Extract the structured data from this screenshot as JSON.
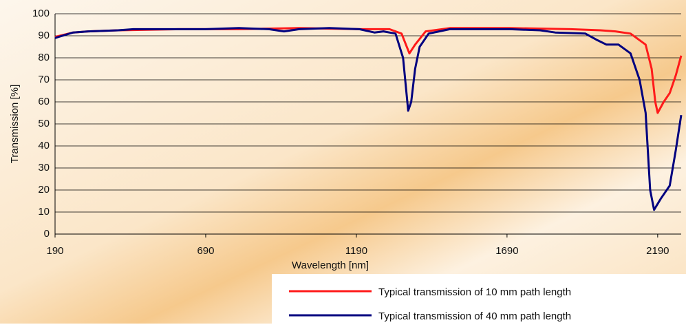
{
  "chart_data": {
    "type": "line",
    "x_label": "Wavelength [nm]",
    "y_label": "Transmission [%]",
    "xlim": [
      190,
      2268
    ],
    "ylim": [
      0,
      100
    ],
    "xticks": [
      190,
      690,
      1190,
      1690,
      2190
    ],
    "yticks": [
      0,
      10,
      20,
      30,
      40,
      50,
      60,
      70,
      80,
      90,
      100
    ],
    "grid": true,
    "legend": "bottom-right",
    "series": [
      {
        "name": "Typical transmission of 10 mm path length",
        "color": "#ff1a1a",
        "x": [
          190,
          250,
          300,
          400,
          600,
          800,
          1000,
          1200,
          1300,
          1340,
          1366,
          1385,
          1420,
          1500,
          1700,
          1900,
          2000,
          2050,
          2100,
          2150,
          2170,
          2182,
          2190,
          2210,
          2230,
          2250,
          2268
        ],
        "values": [
          89.5,
          91.5,
          92,
          92.5,
          93,
          93,
          93.5,
          93,
          93,
          91,
          82,
          86,
          92,
          93.5,
          93.5,
          93,
          92.5,
          92,
          91,
          86,
          75,
          60,
          55,
          60,
          64,
          72,
          81
        ]
      },
      {
        "name": "Typical transmission of 40 mm path length",
        "color": "#00007f",
        "x": [
          190,
          250,
          300,
          400,
          450,
          690,
          800,
          900,
          950,
          1000,
          1100,
          1200,
          1250,
          1280,
          1320,
          1345,
          1362,
          1372,
          1385,
          1400,
          1430,
          1500,
          1700,
          1800,
          1850,
          1950,
          1990,
          2020,
          2060,
          2100,
          2130,
          2150,
          2165,
          2178,
          2200,
          2230,
          2250,
          2268
        ],
        "values": [
          89,
          91.5,
          92,
          92.5,
          93,
          93,
          93.5,
          93,
          92,
          93,
          93.5,
          93,
          91.5,
          92,
          91,
          80,
          56,
          60,
          75,
          85,
          91,
          93,
          93,
          92.5,
          91.5,
          91,
          88,
          86,
          86,
          82,
          70,
          55,
          20,
          11,
          16,
          22,
          38,
          54
        ]
      }
    ]
  }
}
